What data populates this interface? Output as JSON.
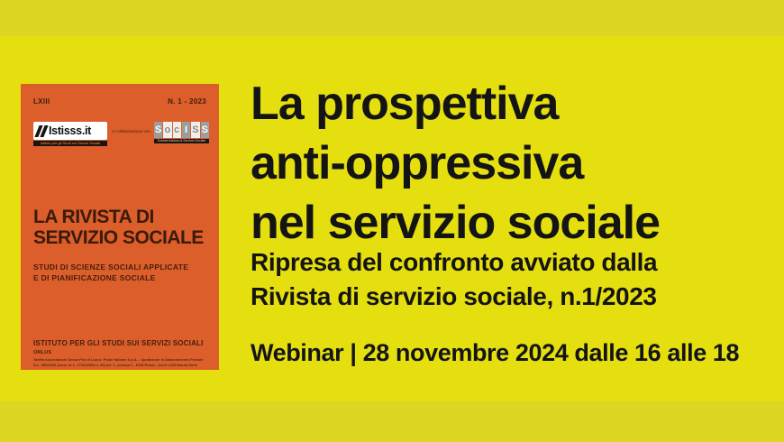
{
  "page": {
    "background_color": "#e5df10",
    "band_color": "#ddd622"
  },
  "cover": {
    "background_color": "#dc5e2a",
    "volume": "LXIII",
    "issue": "N. 1 - 2023",
    "istisss_logo": {
      "name": "Istisss.it",
      "tagline": "Istituto per gli Studi sui Servizi Sociali"
    },
    "collab_text": "in collaborazione con",
    "sociss_logo": {
      "letters": [
        "S",
        "o",
        "c",
        "I",
        "S",
        "S"
      ],
      "tagline": "Società Italiana di Servizio Sociale"
    },
    "title_line1": "LA RIVISTA DI",
    "title_line2": "SERVIZIO SOCIALE",
    "subtitle_line1": "STUDI DI SCIENZE SOCIALI APPLICATE",
    "subtitle_line2": "E DI PIANIFICAZIONE SOCIALE",
    "institute_name": "ISTITUTO PER GLI STUDI SUI SERVIZI SOCIALI",
    "institute_suffix": "ONLUS",
    "fine_print_line1": "Tariffa Associazioni Senza Fini di Lucro: Poste Italiane S.p.A. - Spedizione in Abbonamento Postale",
    "fine_print_line2": "D.L. 353/2003 (conv. in L. 27/02/2004 n. 46) art. 1, comma 2 - DCB Roma - Anno LXIII Nuova Serie"
  },
  "main": {
    "title_line1": "La prospettiva",
    "title_line2": "anti-oppressiva",
    "title_line3": "nel servizio sociale",
    "subtitle_line1": "Ripresa del confronto avviato dalla",
    "subtitle_line2": "Rivista di servizio sociale, n.1/2023",
    "event_info": "Webinar | 28 novembre 2024 dalle 16 alle 18",
    "text_color": "#141414"
  }
}
